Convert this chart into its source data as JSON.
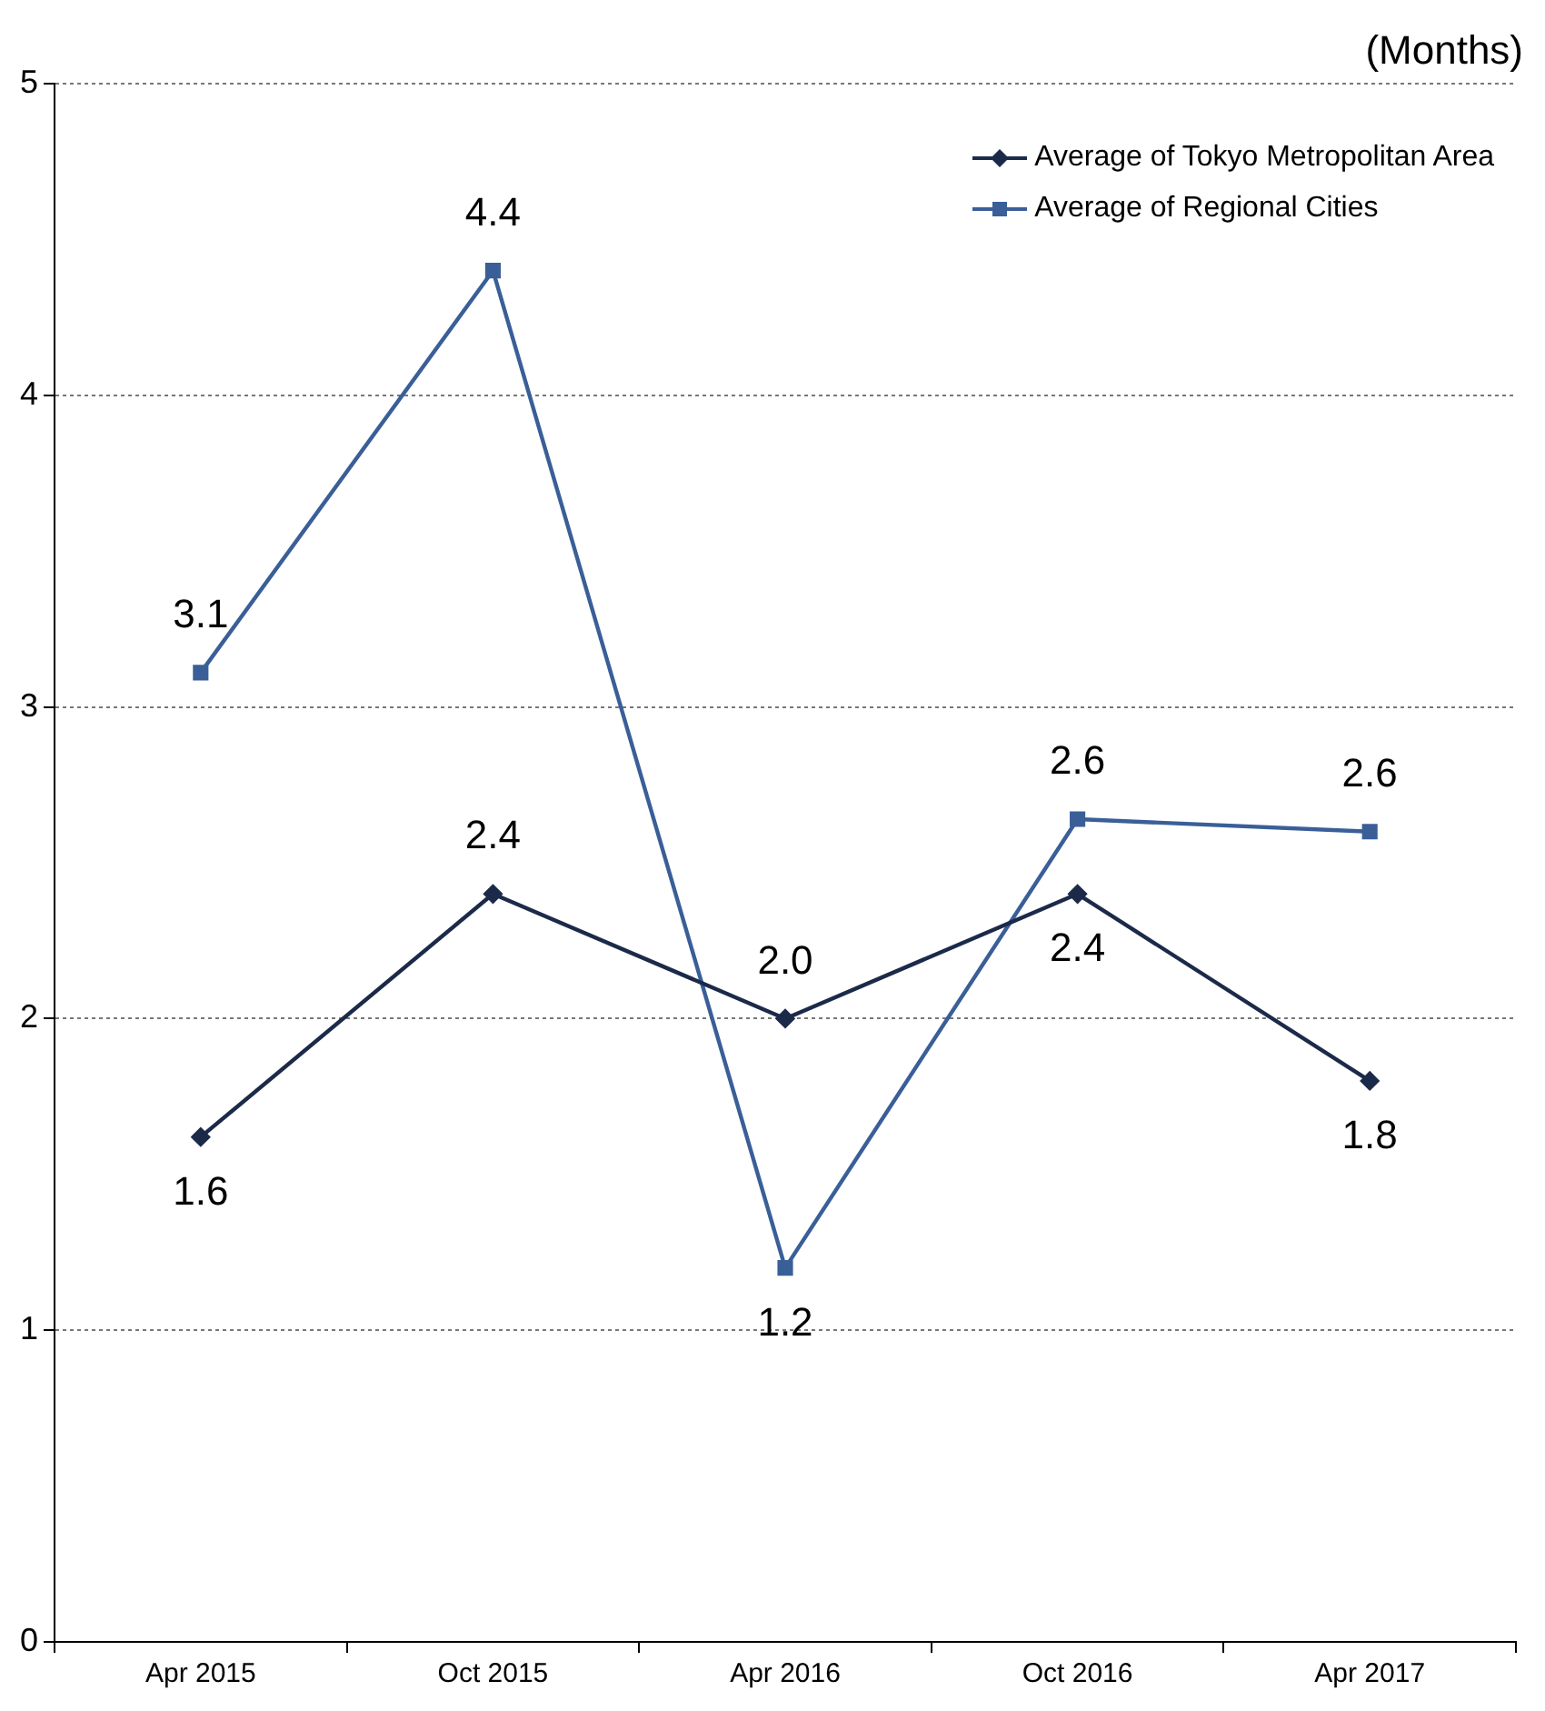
{
  "chart_data": {
    "type": "line",
    "ylabel": "(Months)",
    "categories": [
      "Apr 2015",
      "Oct 2015",
      "Apr 2016",
      "Oct 2016",
      "Apr 2017"
    ],
    "series": [
      {
        "name": "Average of Tokyo Metropolitan Area",
        "color": "#1c2a4a",
        "marker": "diamond",
        "values": [
          1.62,
          2.4,
          2.0,
          2.4,
          1.8
        ],
        "value_labels": [
          "1.6",
          "2.4",
          "2.0",
          "2.4",
          "1.8"
        ]
      },
      {
        "name": "Average of Regional Cities",
        "color": "#3a5f98",
        "marker": "square",
        "values": [
          3.11,
          4.4,
          1.2,
          2.64,
          2.6
        ],
        "value_labels": [
          "3.1",
          "4.4",
          "1.2",
          "2.6",
          "2.6"
        ]
      }
    ],
    "ylim": [
      0,
      5
    ],
    "yticks": [
      0,
      1,
      2,
      3,
      4,
      5
    ],
    "grid": "y",
    "legend": "top right",
    "line_style": "solid"
  }
}
